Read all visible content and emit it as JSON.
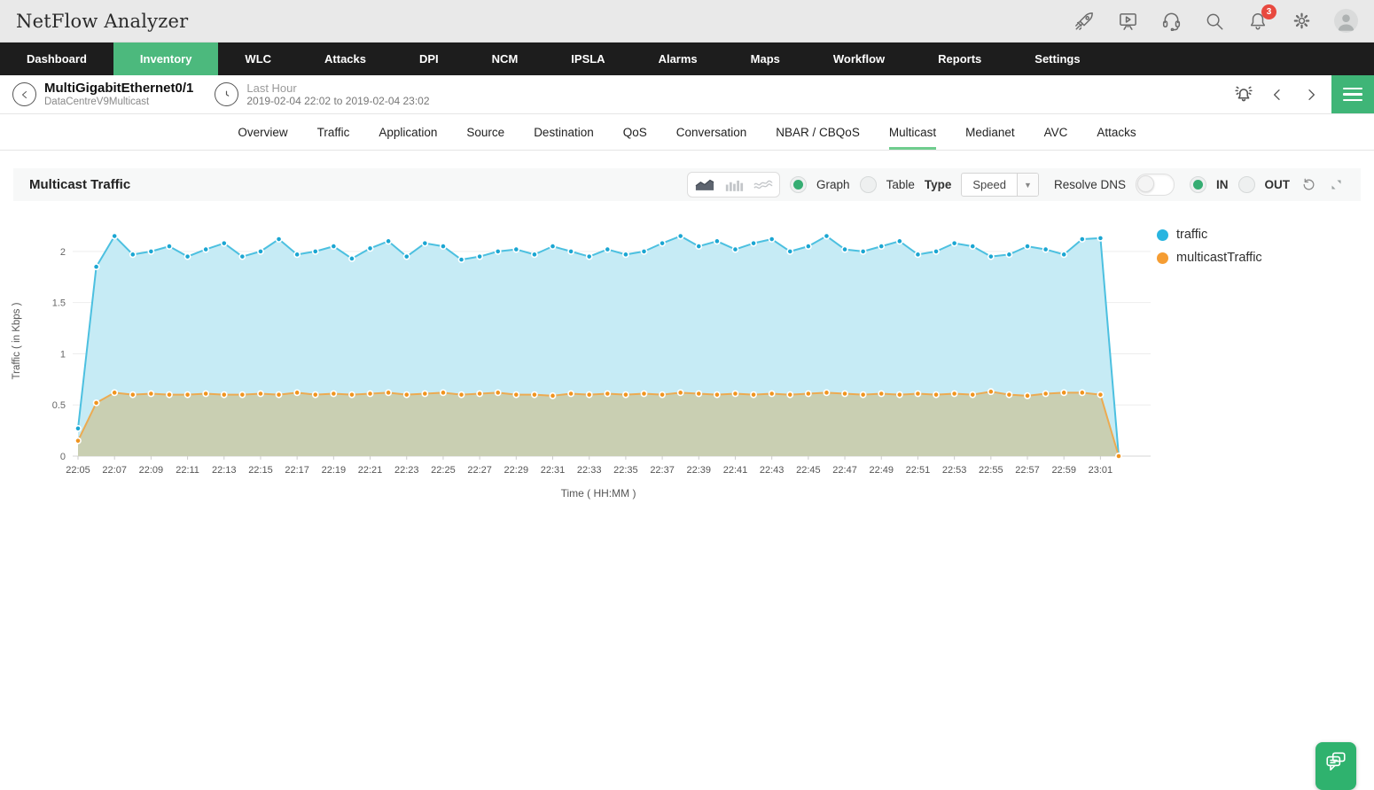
{
  "app": {
    "title": "NetFlow Analyzer"
  },
  "topbar": {
    "notification_count": "3",
    "icons": [
      "rocket-icon",
      "demo-video-icon",
      "support-headset-icon",
      "search-icon",
      "notifications-bell-icon",
      "settings-gear-icon",
      "avatar"
    ]
  },
  "nav": {
    "items": [
      {
        "label": "Dashboard",
        "active": false
      },
      {
        "label": "Inventory",
        "active": true
      },
      {
        "label": "WLC",
        "active": false
      },
      {
        "label": "Attacks",
        "active": false
      },
      {
        "label": "DPI",
        "active": false
      },
      {
        "label": "NCM",
        "active": false
      },
      {
        "label": "IPSLA",
        "active": false
      },
      {
        "label": "Alarms",
        "active": false
      },
      {
        "label": "Maps",
        "active": false
      },
      {
        "label": "Workflow",
        "active": false
      },
      {
        "label": "Reports",
        "active": false
      },
      {
        "label": "Settings",
        "active": false
      }
    ],
    "active_bg": "#4cb97d"
  },
  "subheader": {
    "title": "MultiGigabitEthernet0/1",
    "subtitle": "DataCentreV9Multicast",
    "period_label": "Last Hour",
    "period_range": "2019-02-04 22:02 to 2019-02-04 23:02"
  },
  "tabs": {
    "items": [
      "Overview",
      "Traffic",
      "Application",
      "Source",
      "Destination",
      "QoS",
      "Conversation",
      "NBAR / CBQoS",
      "Multicast",
      "Medianet",
      "AVC",
      "Attacks"
    ],
    "active": "Multicast",
    "active_underline": "#6fcd8e"
  },
  "panel": {
    "title": "Multicast Traffic",
    "chart_type_options": [
      "area",
      "bar",
      "line"
    ],
    "chart_type_selected": "area",
    "view_graph_label": "Graph",
    "view_table_label": "Table",
    "view_selected": "Graph",
    "type_label": "Type",
    "type_value": "Speed",
    "resolve_dns_label": "Resolve DNS",
    "resolve_dns_on": false,
    "in_label": "IN",
    "out_label": "OUT",
    "direction_selected": "IN",
    "radio_on_color": "#35ad72"
  },
  "legend": [
    {
      "label": "traffic",
      "color": "#29b5e0"
    },
    {
      "label": "multicastTraffic",
      "color": "#f59d33"
    }
  ],
  "chart_data": {
    "type": "area",
    "title": "Multicast Traffic",
    "xlabel": "Time ( HH:MM )",
    "ylabel": "Traffic ( in Kbps )",
    "ylim": [
      0,
      2.25
    ],
    "yticks": [
      0,
      0.5,
      1,
      1.5,
      2
    ],
    "grid": true,
    "legend_position": "right",
    "x_label_every": 2,
    "x": [
      "22:05",
      "22:06",
      "22:07",
      "22:08",
      "22:09",
      "22:10",
      "22:11",
      "22:12",
      "22:13",
      "22:14",
      "22:15",
      "22:16",
      "22:17",
      "22:18",
      "22:19",
      "22:20",
      "22:21",
      "22:22",
      "22:23",
      "22:24",
      "22:25",
      "22:26",
      "22:27",
      "22:28",
      "22:29",
      "22:30",
      "22:31",
      "22:32",
      "22:33",
      "22:34",
      "22:35",
      "22:36",
      "22:37",
      "22:38",
      "22:39",
      "22:40",
      "22:41",
      "22:42",
      "22:43",
      "22:44",
      "22:45",
      "22:46",
      "22:47",
      "22:48",
      "22:49",
      "22:50",
      "22:51",
      "22:52",
      "22:53",
      "22:54",
      "22:55",
      "22:56",
      "22:57",
      "22:58",
      "22:59",
      "23:00",
      "23:01",
      "23:02"
    ],
    "series": [
      {
        "name": "traffic",
        "line_color": "#4cc0e0",
        "marker_color": "#1ba6d2",
        "fill_color": "#c6ebf5",
        "values": [
          0.27,
          1.85,
          2.15,
          1.97,
          2.0,
          2.05,
          1.95,
          2.02,
          2.08,
          1.95,
          2.0,
          2.12,
          1.97,
          2.0,
          2.05,
          1.93,
          2.03,
          2.1,
          1.95,
          2.08,
          2.05,
          1.92,
          1.95,
          2.0,
          2.02,
          1.97,
          2.05,
          2.0,
          1.95,
          2.02,
          1.97,
          2.0,
          2.08,
          2.15,
          2.05,
          2.1,
          2.02,
          2.08,
          2.12,
          2.0,
          2.05,
          2.15,
          2.02,
          2.0,
          2.05,
          2.1,
          1.97,
          2.0,
          2.08,
          2.05,
          1.95,
          1.97,
          2.05,
          2.02,
          1.97,
          2.12,
          2.13,
          0.0
        ]
      },
      {
        "name": "multicastTraffic",
        "line_color": "#ecab52",
        "marker_color": "#f0941f",
        "fill_color": "#c9cfb2",
        "values": [
          0.15,
          0.52,
          0.62,
          0.6,
          0.61,
          0.6,
          0.6,
          0.61,
          0.6,
          0.6,
          0.61,
          0.6,
          0.62,
          0.6,
          0.61,
          0.6,
          0.61,
          0.62,
          0.6,
          0.61,
          0.62,
          0.6,
          0.61,
          0.62,
          0.6,
          0.6,
          0.59,
          0.61,
          0.6,
          0.61,
          0.6,
          0.61,
          0.6,
          0.62,
          0.61,
          0.6,
          0.61,
          0.6,
          0.61,
          0.6,
          0.61,
          0.62,
          0.61,
          0.6,
          0.61,
          0.6,
          0.61,
          0.6,
          0.61,
          0.6,
          0.63,
          0.6,
          0.59,
          0.61,
          0.62,
          0.62,
          0.6,
          0.0
        ]
      }
    ]
  }
}
